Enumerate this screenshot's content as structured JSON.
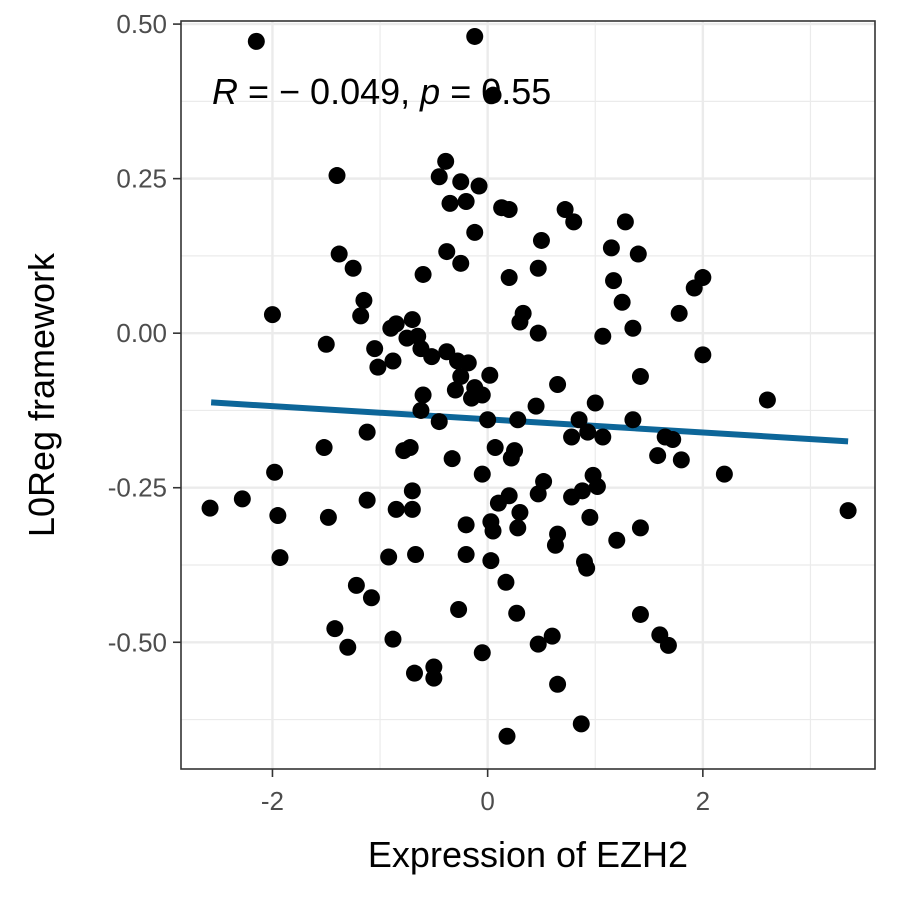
{
  "chart_data": {
    "type": "scatter",
    "xlabel": "Expression of EZH2",
    "ylabel": "L0Reg framework",
    "xlim": [
      -2.85,
      3.6
    ],
    "ylim": [
      -0.705,
      0.505
    ],
    "x_ticks": [
      -2,
      0,
      2
    ],
    "x_tick_labels": [
      "-2",
      "0",
      "2"
    ],
    "y_ticks": [
      -0.5,
      -0.25,
      0.0,
      0.25,
      0.5
    ],
    "y_tick_labels": [
      "-0.50",
      "-0.25",
      "0.00",
      "0.25",
      "0.50"
    ],
    "grid": true,
    "annotation": {
      "r_symbol": "R",
      "r_value": " = − 0.049, ",
      "p_symbol": "p",
      "p_value": " = 0.55"
    },
    "point_color": "#000000",
    "fit_line": {
      "color": "#0d6699",
      "x": [
        -2.57,
        3.35
      ],
      "y": [
        -0.112,
        -0.175
      ]
    },
    "points": [
      {
        "x": -2.15,
        "y": 0.472
      },
      {
        "x": -0.12,
        "y": 0.48
      },
      {
        "x": 0.05,
        "y": 0.385
      },
      {
        "x": -1.4,
        "y": 0.255
      },
      {
        "x": -0.45,
        "y": 0.253
      },
      {
        "x": -0.39,
        "y": 0.278
      },
      {
        "x": -0.25,
        "y": 0.245
      },
      {
        "x": -0.08,
        "y": 0.238
      },
      {
        "x": -0.35,
        "y": 0.21
      },
      {
        "x": -0.2,
        "y": 0.213
      },
      {
        "x": 0.13,
        "y": 0.203
      },
      {
        "x": 0.2,
        "y": 0.2
      },
      {
        "x": 0.72,
        "y": 0.2
      },
      {
        "x": 0.8,
        "y": 0.18
      },
      {
        "x": 1.28,
        "y": 0.18
      },
      {
        "x": -0.12,
        "y": 0.163
      },
      {
        "x": 0.5,
        "y": 0.15
      },
      {
        "x": 1.15,
        "y": 0.138
      },
      {
        "x": -1.38,
        "y": 0.128
      },
      {
        "x": -0.38,
        "y": 0.132
      },
      {
        "x": 1.4,
        "y": 0.128
      },
      {
        "x": -0.25,
        "y": 0.113
      },
      {
        "x": 0.47,
        "y": 0.105
      },
      {
        "x": -1.25,
        "y": 0.105
      },
      {
        "x": -0.6,
        "y": 0.095
      },
      {
        "x": 0.2,
        "y": 0.09
      },
      {
        "x": 1.17,
        "y": 0.085
      },
      {
        "x": 2.0,
        "y": 0.09
      },
      {
        "x": 1.92,
        "y": 0.073
      },
      {
        "x": -1.15,
        "y": 0.053
      },
      {
        "x": 1.25,
        "y": 0.05
      },
      {
        "x": -1.18,
        "y": 0.028
      },
      {
        "x": 0.33,
        "y": 0.032
      },
      {
        "x": 1.78,
        "y": 0.032
      },
      {
        "x": -2.0,
        "y": 0.03
      },
      {
        "x": -0.7,
        "y": 0.022
      },
      {
        "x": 0.3,
        "y": 0.018
      },
      {
        "x": -0.85,
        "y": 0.015
      },
      {
        "x": -0.9,
        "y": 0.008
      },
      {
        "x": 1.35,
        "y": 0.008
      },
      {
        "x": 0.47,
        "y": 0.0
      },
      {
        "x": -0.65,
        "y": -0.005
      },
      {
        "x": -0.75,
        "y": -0.008
      },
      {
        "x": 1.07,
        "y": -0.005
      },
      {
        "x": -1.5,
        "y": -0.018
      },
      {
        "x": -1.05,
        "y": -0.025
      },
      {
        "x": -0.62,
        "y": -0.025
      },
      {
        "x": -0.38,
        "y": -0.03
      },
      {
        "x": -0.52,
        "y": -0.038
      },
      {
        "x": 2.0,
        "y": -0.035
      },
      {
        "x": -0.88,
        "y": -0.045
      },
      {
        "x": -0.28,
        "y": -0.045
      },
      {
        "x": -0.18,
        "y": -0.048
      },
      {
        "x": -1.02,
        "y": -0.055
      },
      {
        "x": 0.02,
        "y": -0.068
      },
      {
        "x": -0.25,
        "y": -0.07
      },
      {
        "x": 1.42,
        "y": -0.07
      },
      {
        "x": 0.65,
        "y": -0.083
      },
      {
        "x": -0.12,
        "y": -0.088
      },
      {
        "x": -0.3,
        "y": -0.092
      },
      {
        "x": -0.6,
        "y": -0.1
      },
      {
        "x": -0.15,
        "y": -0.105
      },
      {
        "x": -0.05,
        "y": -0.1
      },
      {
        "x": 2.6,
        "y": -0.108
      },
      {
        "x": 1.0,
        "y": -0.113
      },
      {
        "x": 0.45,
        "y": -0.118
      },
      {
        "x": -0.62,
        "y": -0.125
      },
      {
        "x": 0.0,
        "y": -0.14
      },
      {
        "x": 0.28,
        "y": -0.14
      },
      {
        "x": 0.85,
        "y": -0.14
      },
      {
        "x": 1.35,
        "y": -0.14
      },
      {
        "x": -0.45,
        "y": -0.143
      },
      {
        "x": -1.12,
        "y": -0.16
      },
      {
        "x": 0.93,
        "y": -0.16
      },
      {
        "x": 0.78,
        "y": -0.168
      },
      {
        "x": 1.07,
        "y": -0.168
      },
      {
        "x": 1.65,
        "y": -0.168
      },
      {
        "x": 1.72,
        "y": -0.172
      },
      {
        "x": -1.52,
        "y": -0.185
      },
      {
        "x": -0.72,
        "y": -0.185
      },
      {
        "x": -0.78,
        "y": -0.19
      },
      {
        "x": 0.07,
        "y": -0.185
      },
      {
        "x": 0.25,
        "y": -0.19
      },
      {
        "x": 1.58,
        "y": -0.198
      },
      {
        "x": 0.22,
        "y": -0.202
      },
      {
        "x": -0.33,
        "y": -0.203
      },
      {
        "x": 1.8,
        "y": -0.205
      },
      {
        "x": -1.98,
        "y": -0.225
      },
      {
        "x": 2.2,
        "y": -0.228
      },
      {
        "x": -0.05,
        "y": -0.228
      },
      {
        "x": 0.98,
        "y": -0.23
      },
      {
        "x": 0.52,
        "y": -0.24
      },
      {
        "x": 1.02,
        "y": -0.248
      },
      {
        "x": -0.7,
        "y": -0.255
      },
      {
        "x": 0.88,
        "y": -0.255
      },
      {
        "x": 0.47,
        "y": -0.26
      },
      {
        "x": 0.2,
        "y": -0.263
      },
      {
        "x": 0.78,
        "y": -0.265
      },
      {
        "x": -2.28,
        "y": -0.268
      },
      {
        "x": -1.12,
        "y": -0.27
      },
      {
        "x": 0.1,
        "y": -0.275
      },
      {
        "x": -2.58,
        "y": -0.283
      },
      {
        "x": -0.85,
        "y": -0.285
      },
      {
        "x": -0.7,
        "y": -0.285
      },
      {
        "x": 3.35,
        "y": -0.287
      },
      {
        "x": 0.3,
        "y": -0.29
      },
      {
        "x": -1.95,
        "y": -0.295
      },
      {
        "x": -1.48,
        "y": -0.298
      },
      {
        "x": 0.95,
        "y": -0.298
      },
      {
        "x": 0.03,
        "y": -0.305
      },
      {
        "x": -0.2,
        "y": -0.31
      },
      {
        "x": 0.28,
        "y": -0.315
      },
      {
        "x": 1.42,
        "y": -0.315
      },
      {
        "x": 0.05,
        "y": -0.32
      },
      {
        "x": 0.65,
        "y": -0.325
      },
      {
        "x": 1.2,
        "y": -0.335
      },
      {
        "x": 0.63,
        "y": -0.343
      },
      {
        "x": -0.2,
        "y": -0.358
      },
      {
        "x": -0.92,
        "y": -0.362
      },
      {
        "x": -0.67,
        "y": -0.358
      },
      {
        "x": -1.93,
        "y": -0.363
      },
      {
        "x": 0.03,
        "y": -0.368
      },
      {
        "x": 0.9,
        "y": -0.37
      },
      {
        "x": 0.92,
        "y": -0.38
      },
      {
        "x": 0.17,
        "y": -0.403
      },
      {
        "x": -1.22,
        "y": -0.408
      },
      {
        "x": -1.08,
        "y": -0.428
      },
      {
        "x": -0.27,
        "y": -0.447
      },
      {
        "x": 0.27,
        "y": -0.453
      },
      {
        "x": 1.42,
        "y": -0.455
      },
      {
        "x": -1.42,
        "y": -0.478
      },
      {
        "x": 1.6,
        "y": -0.488
      },
      {
        "x": 0.6,
        "y": -0.49
      },
      {
        "x": -0.88,
        "y": -0.495
      },
      {
        "x": 0.47,
        "y": -0.503
      },
      {
        "x": 1.68,
        "y": -0.505
      },
      {
        "x": -1.3,
        "y": -0.508
      },
      {
        "x": -0.05,
        "y": -0.517
      },
      {
        "x": -0.5,
        "y": -0.54
      },
      {
        "x": -0.68,
        "y": -0.55
      },
      {
        "x": -0.5,
        "y": -0.558
      },
      {
        "x": 0.65,
        "y": -0.568
      },
      {
        "x": 0.87,
        "y": -0.632
      },
      {
        "x": 0.18,
        "y": -0.652
      }
    ]
  }
}
